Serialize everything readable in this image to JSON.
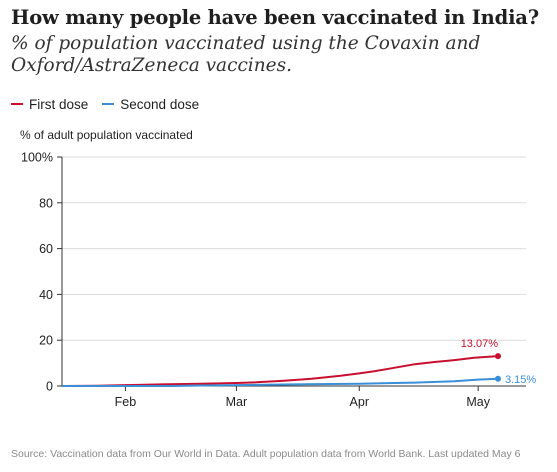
{
  "chart_data": {
    "type": "line",
    "title": "How many people have been vaccinated in India?",
    "subtitle": "% of population vaccinated using the Covaxin and Oxford/AstraZeneca vaccines.",
    "ylabel": "% of adult population vaccinated",
    "ylim": [
      0,
      100
    ],
    "yticks": [
      "0",
      "20",
      "40",
      "60",
      "80",
      "100%"
    ],
    "ytick_values": [
      0,
      20,
      40,
      60,
      80,
      100
    ],
    "xlim": [
      "2021-01-16",
      "2021-05-06"
    ],
    "xticks": [
      {
        "label": "Feb",
        "date": "2021-02-01"
      },
      {
        "label": "Mar",
        "date": "2021-03-01"
      },
      {
        "label": "Apr",
        "date": "2021-04-01"
      },
      {
        "label": "May",
        "date": "2021-05-01"
      }
    ],
    "grid": true,
    "legend_position": "top-left",
    "series": [
      {
        "name": "First dose",
        "color": "#c8102e",
        "end_label": "13.07%",
        "points": [
          [
            "2021-01-16",
            0.0
          ],
          [
            "2021-01-25",
            0.1
          ],
          [
            "2021-02-01",
            0.4
          ],
          [
            "2021-02-10",
            0.7
          ],
          [
            "2021-02-20",
            1.0
          ],
          [
            "2021-03-01",
            1.3
          ],
          [
            "2021-03-06",
            1.6
          ],
          [
            "2021-03-13",
            2.3
          ],
          [
            "2021-03-20",
            3.2
          ],
          [
            "2021-03-27",
            4.4
          ],
          [
            "2021-04-01",
            5.5
          ],
          [
            "2021-04-05",
            6.5
          ],
          [
            "2021-04-10",
            8.0
          ],
          [
            "2021-04-15",
            9.5
          ],
          [
            "2021-04-20",
            10.5
          ],
          [
            "2021-04-25",
            11.3
          ],
          [
            "2021-04-30",
            12.3
          ],
          [
            "2021-05-06",
            13.07
          ]
        ]
      },
      {
        "name": "Second dose",
        "color": "#3a8fd9",
        "end_label": "3.15%",
        "points": [
          [
            "2021-01-16",
            0.0
          ],
          [
            "2021-02-13",
            0.0
          ],
          [
            "2021-02-20",
            0.2
          ],
          [
            "2021-03-01",
            0.4
          ],
          [
            "2021-03-15",
            0.7
          ],
          [
            "2021-04-01",
            1.0
          ],
          [
            "2021-04-15",
            1.5
          ],
          [
            "2021-04-25",
            2.1
          ],
          [
            "2021-05-01",
            2.8
          ],
          [
            "2021-05-06",
            3.15
          ]
        ]
      }
    ]
  },
  "source": "Source: Vaccination data from Our World in Data. Adult population data from World Bank. Last updated May 6"
}
